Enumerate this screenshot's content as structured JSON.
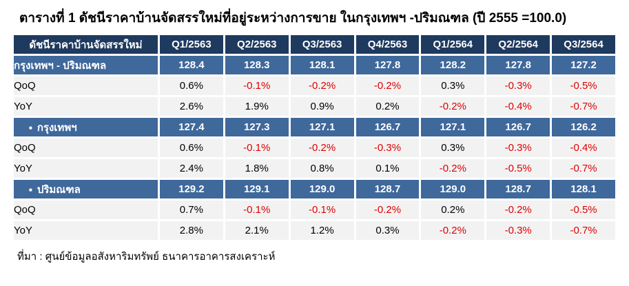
{
  "title": "ตารางที่ 1 ดัชนีราคาบ้านจัดสรรใหม่ที่อยู่ระหว่างการขาย ในกรุงเทพฯ -ปริมณฑล (ปี 2555 =100.0)",
  "source": "ที่มา : ศูนย์ข้อมูลอสังหาริมทรัพย์ ธนาคารอาคารสงเคราะห์",
  "colors": {
    "header_bg": "#1F3A5F",
    "region_row_bg": "#3F689B",
    "metric_row_bg": "#F2F2F2",
    "negative_value": "#E00000",
    "positive_value": "#000000",
    "header_text": "#FFFFFF"
  },
  "table": {
    "bullet_char": "■",
    "header": [
      "ดัชนีราคาบ้านจัดสรรใหม่",
      "Q1/2563",
      "Q2/2563",
      "Q3/2563",
      "Q4/2563",
      "Q1/2564",
      "Q2/2564",
      "Q3/2564"
    ],
    "rows": [
      {
        "label": "กรุงเทพฯ - ปริมณฑล",
        "type": "region",
        "values": [
          "128.4",
          "128.3",
          "128.1",
          "127.8",
          "128.2",
          "127.8",
          "127.2"
        ]
      },
      {
        "label": "QoQ",
        "type": "metric",
        "values": [
          "0.6%",
          "-0.1%",
          "-0.2%",
          "-0.2%",
          "0.3%",
          "-0.3%",
          "-0.5%"
        ]
      },
      {
        "label": "YoY",
        "type": "metric",
        "values": [
          "2.6%",
          "1.9%",
          "0.9%",
          "0.2%",
          "-0.2%",
          "-0.4%",
          "-0.7%"
        ]
      },
      {
        "label": "กรุงเทพฯ",
        "type": "region",
        "values": [
          "127.4",
          "127.3",
          "127.1",
          "126.7",
          "127.1",
          "126.7",
          "126.2"
        ]
      },
      {
        "label": "QoQ",
        "type": "metric",
        "values": [
          "0.6%",
          "-0.1%",
          "-0.2%",
          "-0.3%",
          "0.3%",
          "-0.3%",
          "-0.4%"
        ]
      },
      {
        "label": "YoY",
        "type": "metric",
        "values": [
          "2.4%",
          "1.8%",
          "0.8%",
          "0.1%",
          "-0.2%",
          "-0.5%",
          "-0.7%"
        ]
      },
      {
        "label": "ปริมณฑล",
        "type": "region",
        "values": [
          "129.2",
          "129.1",
          "129.0",
          "128.7",
          "129.0",
          "128.7",
          "128.1"
        ]
      },
      {
        "label": "QoQ",
        "type": "metric",
        "values": [
          "0.7%",
          "-0.1%",
          "-0.1%",
          "-0.2%",
          "0.2%",
          "-0.2%",
          "-0.5%"
        ]
      },
      {
        "label": "YoY",
        "type": "metric",
        "values": [
          "2.8%",
          "2.1%",
          "1.2%",
          "0.3%",
          "-0.2%",
          "-0.3%",
          "-0.7%"
        ]
      }
    ]
  },
  "chart_data": {
    "type": "table",
    "title": "ตารางที่ 1 ดัชนีราคาบ้านจัดสรรใหม่ที่อยู่ระหว่างการขาย ในกรุงเทพฯ -ปริมณฑล (ปี 2555 =100.0)",
    "base_note": "ปี 2555 = 100.0",
    "categories": [
      "Q1/2563",
      "Q2/2563",
      "Q3/2563",
      "Q4/2563",
      "Q1/2564",
      "Q2/2564",
      "Q3/2564"
    ],
    "series": [
      {
        "name": "กรุงเทพฯ - ปริมณฑล (ดัชนี)",
        "values": [
          128.4,
          128.3,
          128.1,
          127.8,
          128.2,
          127.8,
          127.2
        ]
      },
      {
        "name": "กรุงเทพฯ - ปริมณฑล QoQ (%)",
        "values": [
          0.6,
          -0.1,
          -0.2,
          -0.2,
          0.3,
          -0.3,
          -0.5
        ]
      },
      {
        "name": "กรุงเทพฯ - ปริมณฑล YoY (%)",
        "values": [
          2.6,
          1.9,
          0.9,
          0.2,
          -0.2,
          -0.4,
          -0.7
        ]
      },
      {
        "name": "กรุงเทพฯ (ดัชนี)",
        "values": [
          127.4,
          127.3,
          127.1,
          126.7,
          127.1,
          126.7,
          126.2
        ]
      },
      {
        "name": "กรุงเทพฯ QoQ (%)",
        "values": [
          0.6,
          -0.1,
          -0.2,
          -0.3,
          0.3,
          -0.3,
          -0.4
        ]
      },
      {
        "name": "กรุงเทพฯ YoY (%)",
        "values": [
          2.4,
          1.8,
          0.8,
          0.1,
          -0.2,
          -0.5,
          -0.7
        ]
      },
      {
        "name": "ปริมณฑล (ดัชนี)",
        "values": [
          129.2,
          129.1,
          129.0,
          128.7,
          129.0,
          128.7,
          128.1
        ]
      },
      {
        "name": "ปริมณฑล QoQ (%)",
        "values": [
          0.7,
          -0.1,
          -0.1,
          -0.2,
          0.2,
          -0.2,
          -0.5
        ]
      },
      {
        "name": "ปริมณฑล YoY (%)",
        "values": [
          2.8,
          2.1,
          1.2,
          0.3,
          -0.2,
          -0.3,
          -0.7
        ]
      }
    ],
    "source": "ศูนย์ข้อมูลอสังหาริมทรัพย์ ธนาคารอาคารสงเคราะห์"
  }
}
